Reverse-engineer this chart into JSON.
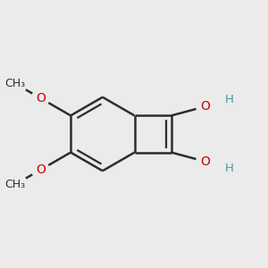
{
  "background_color": "#EBEBEB",
  "bond_color": "#2d2d2d",
  "oxygen_color": "#cc0000",
  "hydrogen_color": "#4a9999",
  "bond_width": 1.8,
  "figsize": [
    3.0,
    3.0
  ],
  "dpi": 100,
  "xlim": [
    -1.3,
    1.4
  ],
  "ylim": [
    -1.2,
    1.2
  ]
}
